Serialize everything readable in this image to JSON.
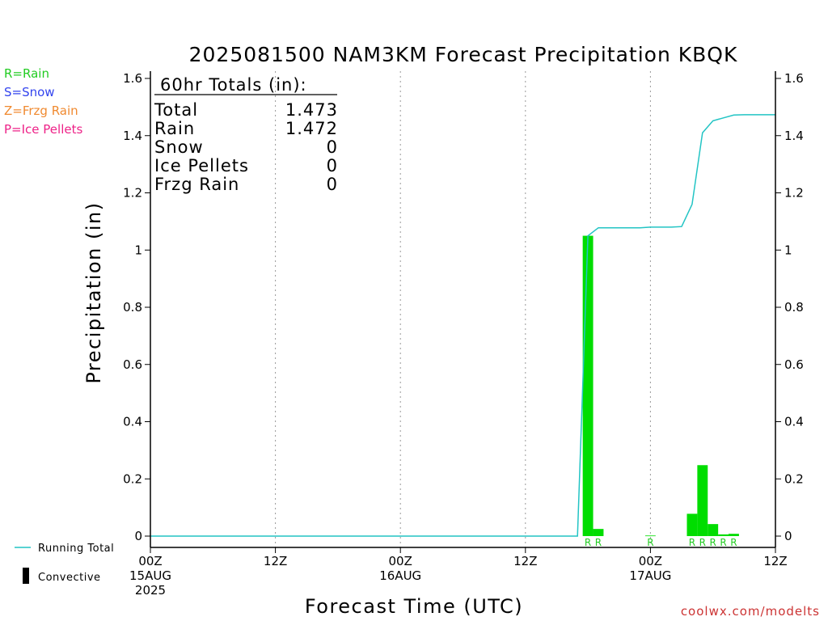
{
  "chart_data": {
    "type": "bar",
    "title": "2025081500 NAM3KM Forecast Precipitation KBQK",
    "xlabel": "Forecast Time (UTC)",
    "ylabel": "Precipitation (in)",
    "ylim": [
      0,
      1.6
    ],
    "xlim_hours": [
      0,
      60
    ],
    "yticks": [
      "0",
      "0.2",
      "0.4",
      "0.6",
      "0.8",
      "1",
      "1.2",
      "1.4",
      "1.6"
    ],
    "yticks_values": [
      0,
      0.2,
      0.4,
      0.6,
      0.8,
      1.0,
      1.2,
      1.4,
      1.6
    ],
    "xticks": [
      {
        "hour": 0,
        "lines": [
          "00Z",
          "15AUG",
          "2025"
        ]
      },
      {
        "hour": 12,
        "lines": [
          "12Z"
        ]
      },
      {
        "hour": 24,
        "lines": [
          "00Z",
          "16AUG"
        ]
      },
      {
        "hour": 36,
        "lines": [
          "12Z"
        ]
      },
      {
        "hour": 48,
        "lines": [
          "00Z",
          "17AUG"
        ]
      },
      {
        "hour": 60,
        "lines": [
          "12Z"
        ]
      }
    ],
    "grid": "vertical dotted at 12-hour ticks",
    "series": [
      {
        "name": "Running Total",
        "kind": "line",
        "color": "#22c4c4",
        "points": [
          [
            0,
            0
          ],
          [
            41,
            0
          ],
          [
            42,
            1.05
          ],
          [
            43,
            1.078
          ],
          [
            44,
            1.078
          ],
          [
            45,
            1.078
          ],
          [
            46,
            1.078
          ],
          [
            47,
            1.078
          ],
          [
            48,
            1.08
          ],
          [
            49,
            1.08
          ],
          [
            50,
            1.08
          ],
          [
            51,
            1.082
          ],
          [
            52,
            1.16
          ],
          [
            53,
            1.41
          ],
          [
            54,
            1.452
          ],
          [
            55,
            1.462
          ],
          [
            56,
            1.472
          ],
          [
            57,
            1.473
          ],
          [
            58,
            1.473
          ],
          [
            59,
            1.473
          ],
          [
            60,
            1.473
          ]
        ]
      },
      {
        "name": "Rain",
        "kind": "bar",
        "color": "#00dd00",
        "bars": [
          {
            "hour": 42,
            "value": 1.05,
            "ptype": "R"
          },
          {
            "hour": 43,
            "value": 0.025,
            "ptype": "R"
          },
          {
            "hour": 48,
            "value": 0.002,
            "ptype": "R"
          },
          {
            "hour": 52,
            "value": 0.078,
            "ptype": "R"
          },
          {
            "hour": 53,
            "value": 0.248,
            "ptype": "R"
          },
          {
            "hour": 54,
            "value": 0.042,
            "ptype": "R"
          },
          {
            "hour": 55,
            "value": 0.006,
            "ptype": "R"
          },
          {
            "hour": 56,
            "value": 0.008,
            "ptype": "R"
          }
        ]
      }
    ]
  },
  "totals": {
    "header": "60hr Totals (in):",
    "rows": [
      {
        "label": "Total",
        "value": "1.473"
      },
      {
        "label": "Rain",
        "value": "1.472"
      },
      {
        "label": "Snow",
        "value": "0"
      },
      {
        "label": "Ice Pellets",
        "value": "0"
      },
      {
        "label": "Frzg Rain",
        "value": "0"
      }
    ]
  },
  "ptype_legend": [
    {
      "text": "R=Rain",
      "color": "#22cc22"
    },
    {
      "text": "S=Snow",
      "color": "#3344ee"
    },
    {
      "text": "Z=Frzg Rain",
      "color": "#f08a30"
    },
    {
      "text": "P=Ice Pellets",
      "color": "#ee2288"
    }
  ],
  "bottom_legend": {
    "running_total": "Running Total",
    "convective": "Convective"
  },
  "footer": {
    "credit": "coolwx.com/modelts"
  },
  "colors": {
    "running_total": "#22c4c4",
    "rain_bar": "#00dd00",
    "credit": "#cc3333"
  }
}
